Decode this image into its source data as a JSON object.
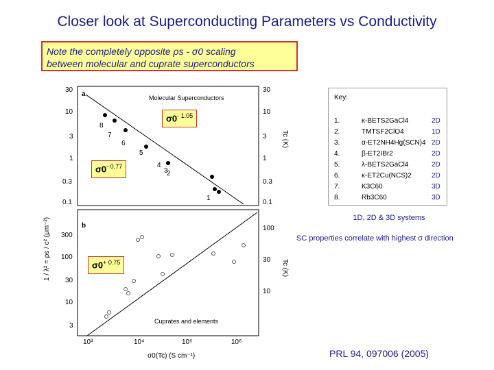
{
  "title": "Closer look at Superconducting Parameters vs Conductivity",
  "note": {
    "line1": "Note the completely opposite ρs - σ0 scaling",
    "line2": "between  molecular and cuprate superconductors"
  },
  "figure": {
    "panel_a": {
      "label": "a",
      "legend": "Molecular Superconductors",
      "y_ticks_left": [
        "30",
        "10",
        "3",
        "1",
        "0.3",
        "0.1"
      ],
      "y_ticks_right": [
        "30",
        "10",
        "3",
        "1",
        "0.3",
        "0.1"
      ],
      "point_labels": [
        "8",
        "7",
        "6",
        "5",
        "4",
        "3",
        "2",
        "1"
      ]
    },
    "panel_b": {
      "label": "b",
      "legend": "Cuprates and elements",
      "y_ticks_left": [
        "300",
        "100",
        "30",
        "10",
        "3"
      ],
      "y_ticks_right": [
        "100",
        "30",
        "10"
      ],
      "x_ticks": [
        "10³",
        "10⁴",
        "10⁵",
        "10⁶"
      ]
    },
    "ylabel_left": "1 / λ² = ρs / c² (μm⁻²)",
    "ylabel_right": "Tc (K)",
    "xlabel": "σ0(Tc) (S cm⁻¹)"
  },
  "scalings": {
    "a1": {
      "base": "σ0",
      "exp": "- 1.05"
    },
    "a2": {
      "base": "σ0",
      "exp": "- 0.77"
    },
    "b1": {
      "base": "σ0",
      "exp": "+ 0.75"
    }
  },
  "key": {
    "title": "Key:",
    "rows": [
      {
        "num": "1.",
        "mat": "κ-BETS2GaCl4",
        "dim": "2D"
      },
      {
        "num": "2.",
        "mat": "TMTSF2ClO4",
        "dim": "1D"
      },
      {
        "num": "3.",
        "mat": "α-ET2NH4Hg(SCN)4",
        "dim": "2D"
      },
      {
        "num": "4.",
        "mat": "β-ET2IBr2",
        "dim": "2D"
      },
      {
        "num": "5.",
        "mat": "λ-BETS2GaCl4",
        "dim": "2D"
      },
      {
        "num": "6.",
        "mat": "κ-ET2Cu(NCS)2",
        "dim": "2D"
      },
      {
        "num": "7.",
        "mat": "K3C60",
        "dim": "3D"
      },
      {
        "num": "8.",
        "mat": "Rb3C60",
        "dim": "3D"
      }
    ]
  },
  "systems": "1D, 2D & 3D systems",
  "sc_note": "SC properties correlate with highest σ direction",
  "reference": "PRL 94, 097006 (2005)"
}
